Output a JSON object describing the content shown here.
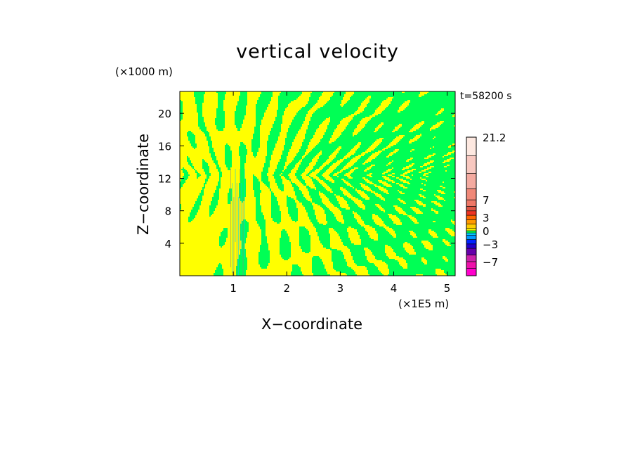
{
  "chart_data": {
    "type": "heatmap",
    "title": "vertical velocity",
    "xlabel": "X−coordinate",
    "ylabel": "Z−coordinate",
    "x_unit": "(×1E5 m)",
    "y_unit": "(×1000 m)",
    "annotation": "t=58200 s",
    "xlim": [
      0,
      5.15
    ],
    "ylim": [
      0,
      22.7
    ],
    "x_ticks": [
      {
        "value": 1,
        "label": "1"
      },
      {
        "value": 2,
        "label": "2"
      },
      {
        "value": 3,
        "label": "3"
      },
      {
        "value": 4,
        "label": "4"
      },
      {
        "value": 5,
        "label": "5"
      }
    ],
    "y_ticks": [
      {
        "value": 4,
        "label": "4"
      },
      {
        "value": 8,
        "label": "8"
      },
      {
        "value": 12,
        "label": "12"
      },
      {
        "value": 16,
        "label": "16"
      },
      {
        "value": 20,
        "label": "20"
      }
    ],
    "field_colors": {
      "positive": "#ffff00",
      "negative": "#00ff55"
    },
    "colorbar": {
      "range": [
        -10.2,
        21.2
      ],
      "levels": [
        {
          "lo": -10.2,
          "hi": -8.5,
          "color": "#ff00cc"
        },
        {
          "lo": -8.5,
          "hi": -7,
          "color": "#ee11aa"
        },
        {
          "lo": -7,
          "hi": -5.5,
          "color": "#cc22aa"
        },
        {
          "lo": -5.5,
          "hi": -4,
          "color": "#6600aa"
        },
        {
          "lo": -4,
          "hi": -3,
          "color": "#2200cc"
        },
        {
          "lo": -3,
          "hi": -2,
          "color": "#0022ff"
        },
        {
          "lo": -2,
          "hi": -1,
          "color": "#0099ff"
        },
        {
          "lo": -1,
          "hi": -0.5,
          "color": "#00ccff"
        },
        {
          "lo": -0.5,
          "hi": 0,
          "color": "#00ff55"
        },
        {
          "lo": 0,
          "hi": 0.5,
          "color": "#ffff00"
        },
        {
          "lo": 0.5,
          "hi": 1.5,
          "color": "#ffcc00"
        },
        {
          "lo": 1.5,
          "hi": 2.5,
          "color": "#ff9900"
        },
        {
          "lo": 2.5,
          "hi": 3.5,
          "color": "#ff6600"
        },
        {
          "lo": 3.5,
          "hi": 4.5,
          "color": "#ee3322"
        },
        {
          "lo": 4.5,
          "hi": 5.5,
          "color": "#dd5544"
        },
        {
          "lo": 5.5,
          "hi": 7,
          "color": "#ee7766"
        },
        {
          "lo": 7,
          "hi": 9.5,
          "color": "#f08878"
        },
        {
          "lo": 9.5,
          "hi": 13,
          "color": "#f4aaa0"
        },
        {
          "lo": 13,
          "hi": 17,
          "color": "#f8c8c0"
        },
        {
          "lo": 17,
          "hi": 21.2,
          "color": "#fde8e0"
        }
      ],
      "labels": [
        {
          "value": 21.2,
          "label": "21.2"
        },
        {
          "value": 7,
          "label": "7"
        },
        {
          "value": 3,
          "label": "3"
        },
        {
          "value": 0,
          "label": "0"
        },
        {
          "value": -3,
          "label": "−3"
        },
        {
          "value": -7,
          "label": "−7"
        }
      ]
    }
  }
}
